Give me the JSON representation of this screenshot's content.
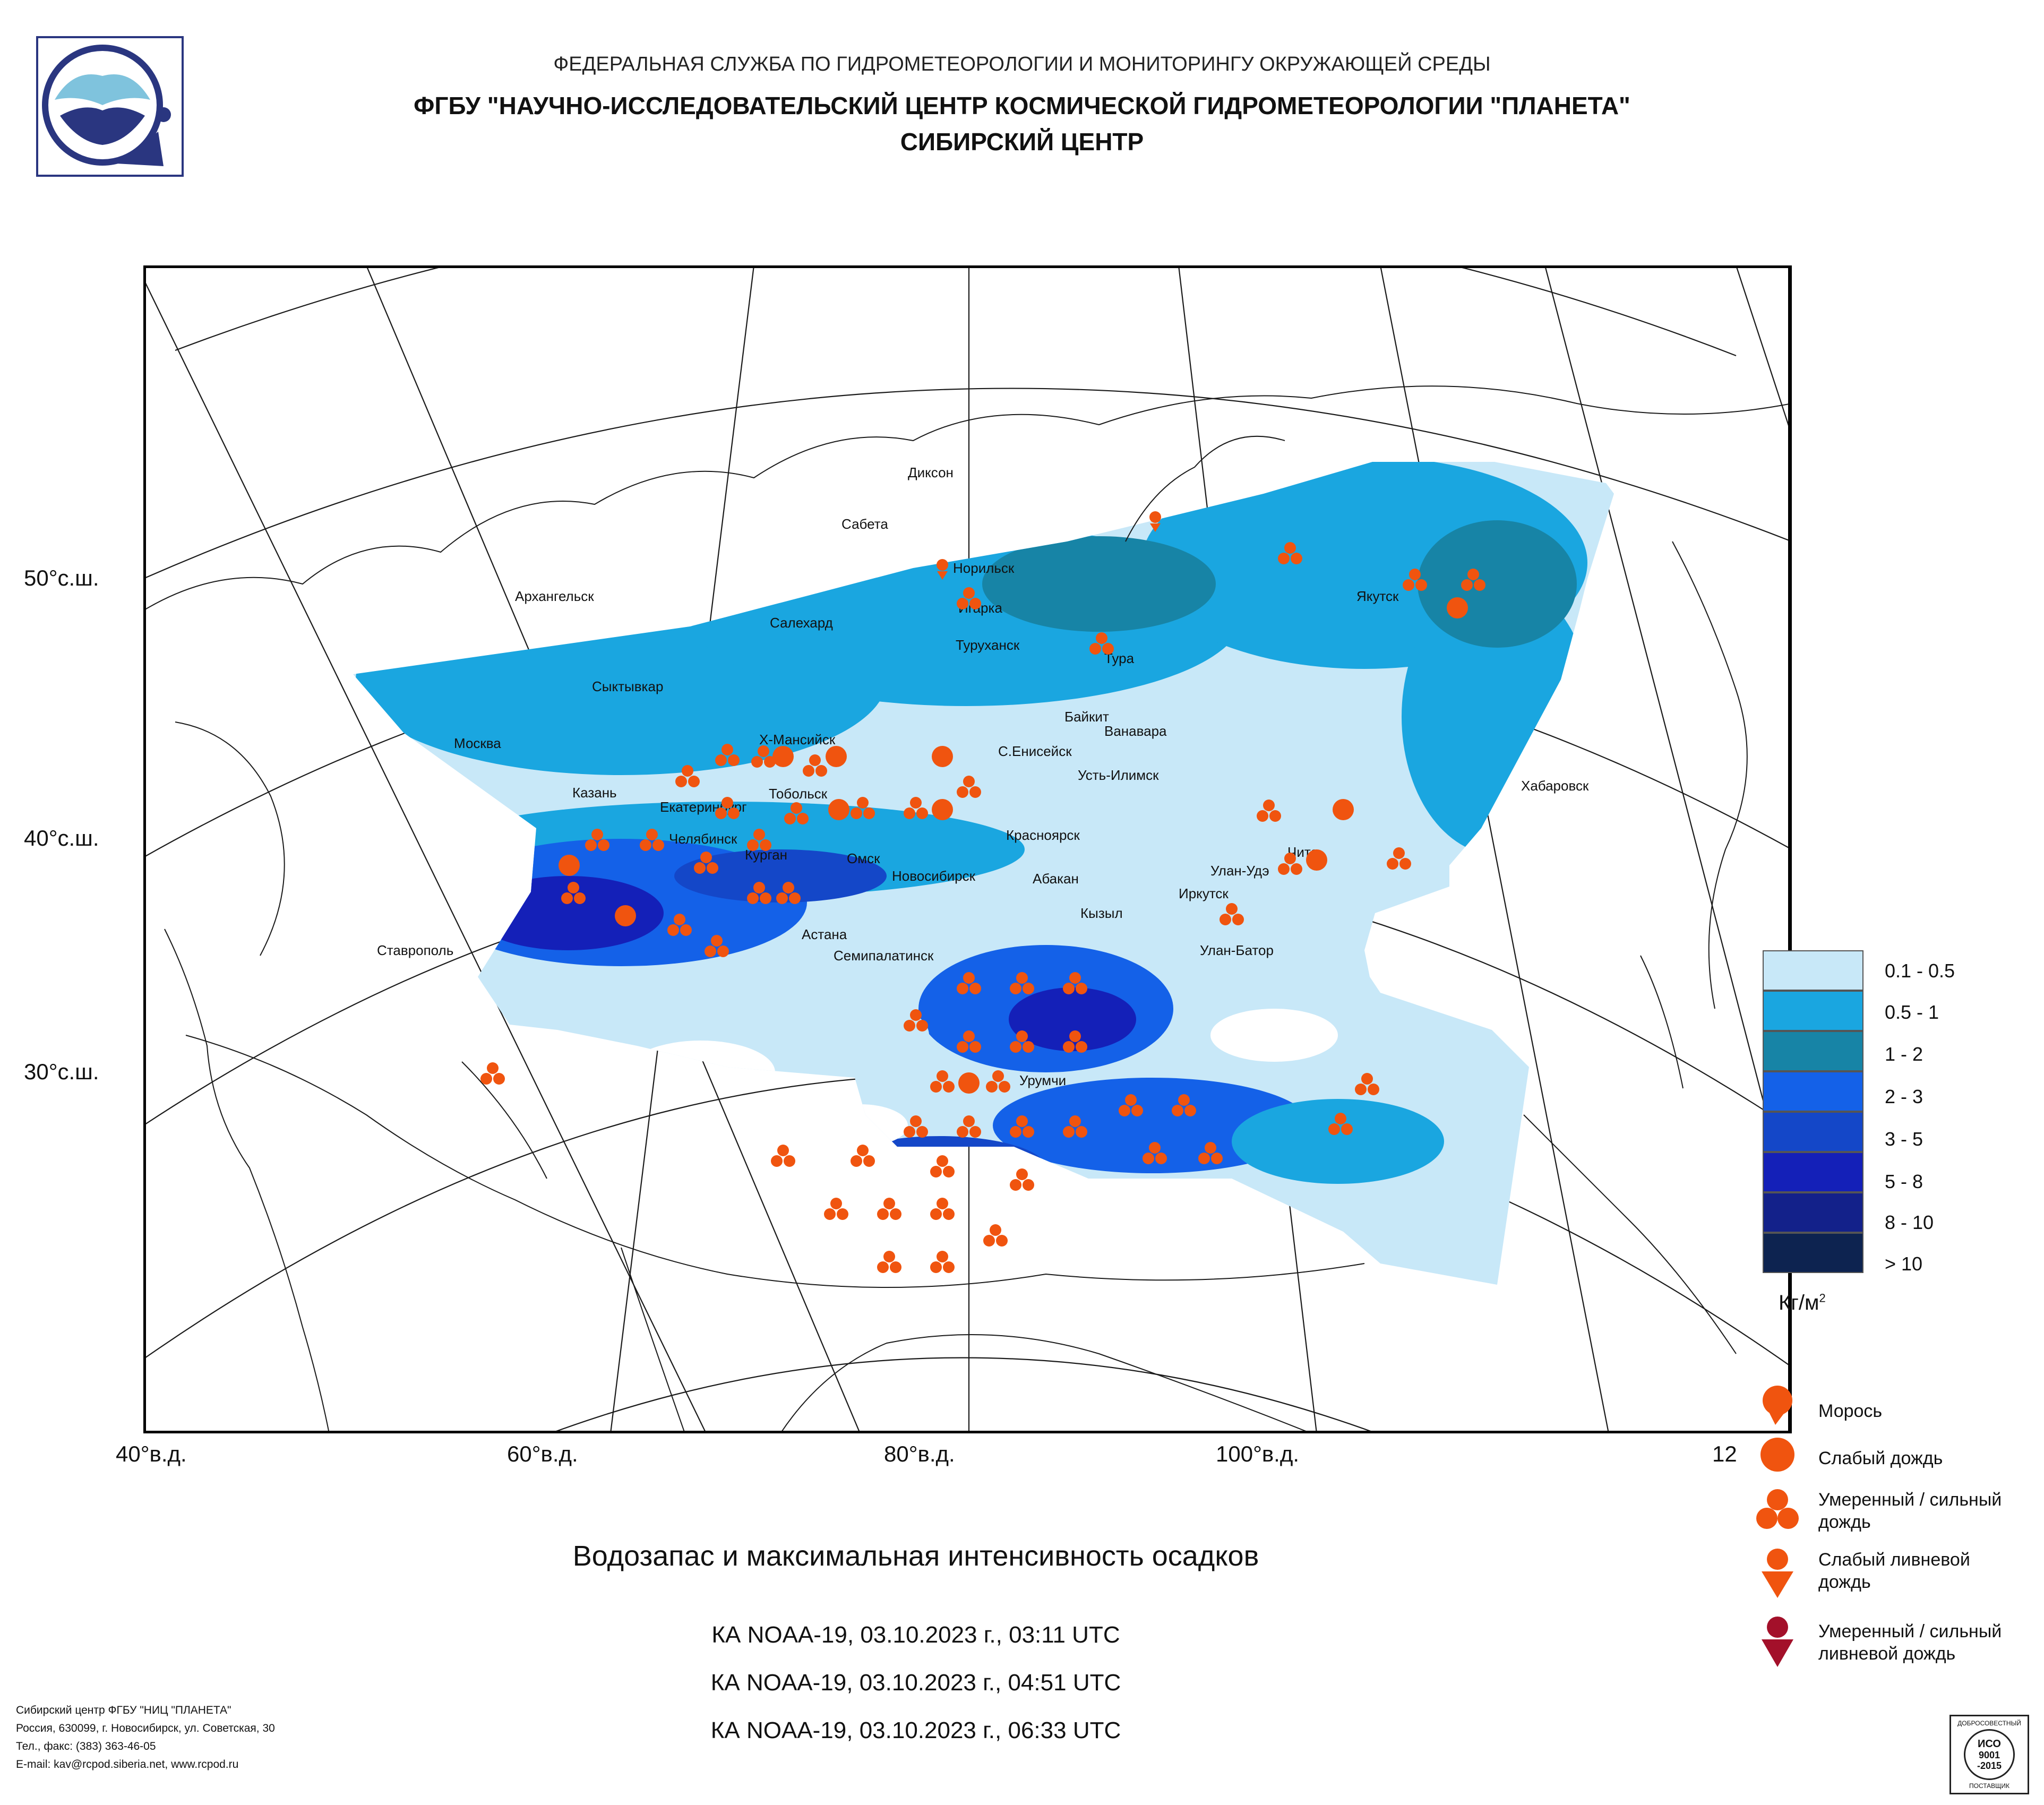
{
  "header": {
    "line1": "ФЕДЕРАЛЬНАЯ СЛУЖБА ПО ГИДРОМЕТЕОРОЛОГИИ И МОНИТОРИНГУ ОКРУЖАЮЩЕЙ СРЕДЫ",
    "line2": "ФГБУ \"НАУЧНО-ИССЛЕДОВАТЕЛЬСКИЙ ЦЕНТР КОСМИЧЕСКОЙ ГИДРОМЕТЕОРОЛОГИИ \"ПЛАНЕТА\"",
    "line3": "СИБИРСКИЙ ЦЕНТР"
  },
  "map": {
    "lat_labels": [
      "50°с.ш.",
      "40°с.ш.",
      "30°с.ш."
    ],
    "lon_labels": [
      "40°в.д.",
      "60°в.д.",
      "80°в.д.",
      "100°в.д.",
      "12"
    ],
    "cities": [
      "Диксон",
      "Сабета",
      "Норильск",
      "Игарка",
      "Архангельск",
      "Салехард",
      "Туруханск",
      "Тура",
      "Якутск",
      "Сыктывкар",
      "Байкит",
      "Ванавара",
      "Москва",
      "Х-Мансийск",
      "С.Енисейск",
      "Хабаровск",
      "Казань",
      "Екатеринбург",
      "Тобольск",
      "Усть-Илимск",
      "Челябинск",
      "Красноярск",
      "Курган",
      "Омск",
      "Новосибирск",
      "Абакан",
      "Улан-Удэ",
      "Чита",
      "Иркутск",
      "Кызыл",
      "Ставрополь",
      "Астана",
      "Улан-Батор",
      "Семипалатинск",
      "Урумчи"
    ]
  },
  "legend": {
    "scale": [
      {
        "label": "0.1 - 0.5",
        "color": "#c8e8f8"
      },
      {
        "label": "0.5 - 1",
        "color": "#1aa6e0"
      },
      {
        "label": "1 - 2",
        "color": "#1784a6"
      },
      {
        "label": "2 - 3",
        "color": "#1461e8"
      },
      {
        "label": "3 - 5",
        "color": "#1447c8"
      },
      {
        "label": "5 - 8",
        "color": "#1420b8"
      },
      {
        "label": "8 - 10",
        "color": "#13218a"
      },
      {
        "label": "> 10",
        "color": "#0d2350"
      }
    ],
    "unit": "Кг/м",
    "unit_sup": "2",
    "symbols": [
      {
        "name": "drizzle",
        "label": "Морось",
        "color": "#f0540f"
      },
      {
        "name": "light-rain",
        "label": "Слабый дождь",
        "color": "#f0540f"
      },
      {
        "name": "moderate-rain",
        "label": "Умеренный / сильный дождь",
        "color": "#f0540f"
      },
      {
        "name": "light-shower",
        "label": "Слабый ливневой дождь",
        "color": "#f0540f"
      },
      {
        "name": "heavy-shower",
        "label": "Умеренный / сильный ливневой дождь",
        "color": "#a3102a"
      }
    ]
  },
  "title": "Водозапас и максимальная интенсивность осадков",
  "passes": [
    "КА NOAA-19, 03.10.2023 г., 03:11 UTC",
    "КА NOAA-19, 03.10.2023 г., 04:51 UTC",
    "КА NOAA-19, 03.10.2023 г., 06:33 UTC"
  ],
  "footer": {
    "line1": "Сибирский центр ФГБУ \"НИЦ \"ПЛАНЕТА\"",
    "line2": "Россия, 630099, г. Новосибирск, ул. Советская, 30",
    "line3": "Тел., факс: (383) 363-46-05",
    "line4": "E-mail: kav@rcpod.siberia.net, www.rcpod.ru"
  },
  "cert": {
    "top": "ДОБРОСОВЕСТНЫЙ",
    "mid1": "ИСО",
    "mid2": "9001",
    "mid3": "-2015",
    "bottom": "ПОСТАВЩИК"
  }
}
